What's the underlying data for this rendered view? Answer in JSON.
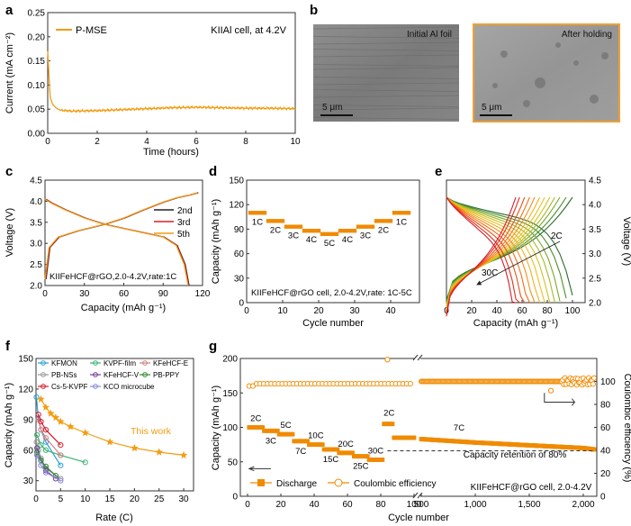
{
  "colors": {
    "orange": "#f39c12",
    "dark_orange": "#f08a00",
    "axis": "#333333",
    "sem_border": "#f0a030",
    "blue": "#2a9fd6",
    "green": "#3cb371",
    "pink": "#d48080",
    "gray": "#999999",
    "purple": "#7b3fa0",
    "dkgreen": "#2e8b2e",
    "red": "#d81b2c",
    "lavender": "#8a8ad8",
    "black": "#222222"
  },
  "panels": {
    "a": "a",
    "b": "b",
    "c": "c",
    "d": "d",
    "e": "e",
    "f": "f",
    "g": "g"
  },
  "sem": {
    "left_label": "Initial Al foil",
    "right_label": "After holding",
    "scale_left": "5 μm",
    "scale_right": "5 μm"
  },
  "chart_data": [
    {
      "id": "a",
      "type": "line",
      "legend": [
        "P-MSE"
      ],
      "annotation": "KIIAl cell, at 4.2V",
      "xlabel": "Time (hours)",
      "ylabel": "Current (mA cm⁻²)",
      "xlim": [
        0,
        10
      ],
      "ylim": [
        0,
        0.25
      ],
      "xticks": [
        "0",
        "2",
        "4",
        "6",
        "8",
        "10"
      ],
      "yticks": [
        "0.00",
        "0.05",
        "0.10",
        "0.15",
        "0.20",
        "0.25"
      ],
      "x": [
        0,
        0.05,
        0.1,
        0.2,
        0.35,
        0.5,
        1.0,
        2.0,
        3.0,
        4.0,
        5.0,
        6.0,
        7.0,
        8.0,
        9.0,
        10.0
      ],
      "y": [
        0.17,
        0.12,
        0.075,
        0.06,
        0.052,
        0.048,
        0.046,
        0.047,
        0.049,
        0.051,
        0.053,
        0.054,
        0.053,
        0.052,
        0.052,
        0.051
      ]
    },
    {
      "id": "c",
      "type": "line",
      "legend": [
        "2nd",
        "3rd",
        "5th"
      ],
      "annotation": "KIIFeHCF@rGO,2.0-4.2V,rate:1C",
      "xlabel": "Capacity (mAh g⁻¹)",
      "ylabel": "Voltage (V)",
      "xlim": [
        0,
        120
      ],
      "ylim": [
        2.0,
        4.5
      ],
      "xticks": [
        "0",
        "30",
        "60",
        "90",
        "120"
      ],
      "yticks": [
        "2.0",
        "2.5",
        "3.0",
        "3.5",
        "4.0",
        "4.5"
      ],
      "charge": {
        "x": [
          0,
          3,
          10,
          25,
          45,
          60,
          75,
          90,
          100,
          110,
          116
        ],
        "y": [
          2.15,
          2.9,
          3.15,
          3.3,
          3.45,
          3.6,
          3.8,
          3.98,
          4.08,
          4.15,
          4.2
        ]
      },
      "discharge": {
        "x": [
          0,
          5,
          15,
          30,
          45,
          60,
          75,
          90,
          100,
          106,
          109
        ],
        "y": [
          4.05,
          3.95,
          3.8,
          3.6,
          3.45,
          3.35,
          3.25,
          3.15,
          2.95,
          2.5,
          2.0
        ]
      }
    },
    {
      "id": "d",
      "type": "scatter",
      "annotation": "KIIFeHCF@rGO cell, 2.0-4.2V,rate: 1C-5C",
      "xlabel": "Cycle number",
      "ylabel": "Capacity (mAh g⁻¹)",
      "xlim": [
        0,
        48
      ],
      "ylim": [
        0,
        150
      ],
      "xticks": [
        "0",
        "10",
        "20",
        "30",
        "40"
      ],
      "yticks": [
        "0",
        "30",
        "60",
        "90",
        "120",
        "150"
      ],
      "rates": [
        "1C",
        "2C",
        "3C",
        "4C",
        "5C",
        "4C",
        "3C",
        "2C",
        "1C"
      ],
      "rate_values": [
        110,
        100,
        93,
        88,
        84,
        88,
        93,
        100,
        110
      ]
    },
    {
      "id": "e",
      "type": "line",
      "xlabel": "Capacity (mAh g⁻¹)",
      "ylabel": "Voltage (V)",
      "xlim": [
        0,
        110
      ],
      "ylim": [
        2.0,
        4.5
      ],
      "xticks": [
        "0",
        "20",
        "40",
        "60",
        "80",
        "100"
      ],
      "yticks": [
        "2.0",
        "2.5",
        "3.0",
        "3.5",
        "4.0",
        "4.5"
      ],
      "labels": [
        "2C",
        "30C"
      ],
      "curve_max_capacity": [
        100,
        95,
        90,
        86,
        82,
        78,
        74,
        70,
        66,
        62,
        58,
        55
      ],
      "colors": [
        "#2e6b2e",
        "#4a8f2a",
        "#78a82a",
        "#a8b82a",
        "#d0c020",
        "#e8c020",
        "#f0b020",
        "#f09018",
        "#f07018",
        "#e85018",
        "#e03018",
        "#d81b2c"
      ]
    },
    {
      "id": "f",
      "type": "line",
      "xlabel": "Rate (C)",
      "ylabel": "Capacity (mAh g⁻¹)",
      "xlim": [
        0,
        32
      ],
      "ylim": [
        20,
        150
      ],
      "xticks": [
        "0",
        "5",
        "10",
        "15",
        "20",
        "25",
        "30"
      ],
      "yticks": [
        "30",
        "60",
        "90",
        "120",
        "150"
      ],
      "annotation": "This work",
      "series": [
        {
          "name": "KFMON",
          "color_key": "blue",
          "x": [
            0.1,
            0.5,
            1,
            2,
            5
          ],
          "y": [
            112,
            90,
            80,
            68,
            45
          ]
        },
        {
          "name": "KVPF-film",
          "color_key": "green",
          "x": [
            0.2,
            1,
            2,
            5,
            10
          ],
          "y": [
            75,
            65,
            60,
            55,
            48
          ]
        },
        {
          "name": "KFeHCF-E",
          "color_key": "pink",
          "x": [
            0.5,
            1,
            2,
            5
          ],
          "y": [
            90,
            80,
            72,
            55
          ]
        },
        {
          "name": "PB-NSs",
          "color_key": "gray",
          "x": [
            0.1,
            0.5,
            1,
            2,
            5
          ],
          "y": [
            68,
            60,
            52,
            42,
            32
          ]
        },
        {
          "name": "KFeHCF-V",
          "color_key": "purple",
          "x": [
            0.2,
            1,
            2,
            4
          ],
          "y": [
            62,
            50,
            40,
            32
          ]
        },
        {
          "name": "PB-PPY",
          "color_key": "dkgreen",
          "x": [
            0.2,
            1,
            2,
            4
          ],
          "y": [
            58,
            50,
            44,
            35
          ]
        },
        {
          "name": "Cs-5-KVPF",
          "color_key": "red",
          "x": [
            0.5,
            1,
            2,
            5
          ],
          "y": [
            95,
            88,
            80,
            65
          ]
        },
        {
          "name": "KCO microcube",
          "color_key": "lavender",
          "x": [
            0.2,
            1,
            2,
            5
          ],
          "y": [
            55,
            45,
            38,
            30
          ]
        },
        {
          "name": "This work",
          "color_key": "orange",
          "x": [
            1,
            2,
            3,
            4,
            5,
            7,
            10,
            15,
            20,
            25,
            30
          ],
          "y": [
            110,
            102,
            96,
            92,
            88,
            83,
            77,
            68,
            62,
            58,
            55
          ]
        }
      ]
    },
    {
      "id": "g",
      "type": "scatter",
      "xlabel": "Cycle number",
      "ylabel": "Capacity (mAh g⁻¹)",
      "ylabel_right": "Coulombic efficiency (%)",
      "ylim": [
        0,
        200
      ],
      "ylim_right": [
        0,
        120
      ],
      "xticks": [
        "0",
        "20",
        "40",
        "60",
        "80",
        "100",
        "500",
        "1,000",
        "1,500",
        "2,000"
      ],
      "yticks": [
        "0",
        "50",
        "100",
        "150",
        "200"
      ],
      "yticks_right": [
        "0",
        "20",
        "40",
        "60",
        "80",
        "100"
      ],
      "rates": [
        "2C",
        "3C",
        "5C",
        "7C",
        "10C",
        "15C",
        "20C",
        "25C",
        "30C",
        "2C",
        "7C"
      ],
      "rate_values": [
        100,
        95,
        90,
        80,
        75,
        68,
        63,
        58,
        53,
        105,
        83
      ],
      "legend": [
        "Discharge",
        "Coulombic efficiency"
      ],
      "annotation": "Capacity retention of 80%",
      "annotation2": "KIIFeHCF@rGO cell, 2.0-4.2V",
      "long_cycle": {
        "cycles": [
          500,
          1000,
          1500,
          2000,
          2100
        ],
        "capacity": [
          83,
          78,
          74,
          70,
          68
        ]
      }
    }
  ]
}
